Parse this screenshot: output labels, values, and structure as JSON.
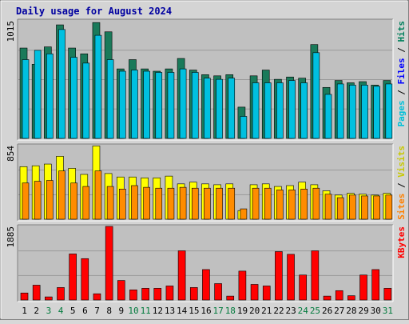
{
  "chart_data": {
    "type": "bar",
    "title": "Daily usage for August 2024",
    "categories": [
      "1",
      "2",
      "3",
      "4",
      "5",
      "6",
      "7",
      "8",
      "9",
      "10",
      "11",
      "12",
      "13",
      "14",
      "15",
      "16",
      "17",
      "18",
      "19",
      "20",
      "21",
      "22",
      "23",
      "24",
      "25",
      "26",
      "27",
      "28",
      "29",
      "30",
      "31"
    ],
    "weekend_days": [
      "3",
      "4",
      "10",
      "11",
      "17",
      "18",
      "24",
      "25",
      "31"
    ],
    "panels": [
      {
        "id": "hits",
        "max_label": "1015",
        "ymax": 1015,
        "legend": [
          "Hits",
          "Files",
          "Pages"
        ],
        "legend_colors": [
          "#00805c",
          "#0000ff",
          "#00c0d8"
        ],
        "series": [
          {
            "name": "Hits",
            "color": "#1a7a5a",
            "values": [
              780,
              640,
              790,
              980,
              780,
              730,
              1000,
              920,
              600,
              680,
              600,
              580,
              600,
              690,
              590,
              550,
              540,
              550,
              270,
              540,
              590,
              510,
              530,
              520,
              810,
              440,
              500,
              480,
              490,
              460,
              500
            ]
          },
          {
            "name": "Files",
            "color": "#0000ff",
            "values": [
              30,
              40,
              20,
              30,
              80,
              10,
              120,
              50,
              20,
              30,
              30,
              40,
              10,
              120,
              60,
              40,
              20,
              10,
              130,
              40,
              20,
              20,
              20,
              20,
              90,
              10,
              10,
              10,
              30,
              30,
              40
            ]
          },
          {
            "name": "Pages",
            "color": "#00c0e0",
            "values": [
              680,
              760,
              730,
              940,
              700,
              650,
              890,
              680,
              580,
              590,
              580,
              570,
              570,
              600,
              570,
              520,
              510,
              520,
              190,
              480,
              480,
              480,
              500,
              480,
              740,
              380,
              470,
              460,
              460,
              450,
              470
            ]
          }
        ]
      },
      {
        "id": "visits",
        "max_label": "854",
        "ymax": 854,
        "legend": [
          "Visits",
          "Sites"
        ],
        "legend_colors": [
          "#c8c800",
          "#ff8000"
        ],
        "series": [
          {
            "name": "Visits",
            "color": "#ffff00",
            "values": [
              610,
              620,
              640,
              730,
              590,
              520,
              850,
              530,
              490,
              490,
              480,
              480,
              500,
              410,
              430,
              410,
              400,
              410,
              100,
              400,
              410,
              380,
              390,
              430,
              400,
              330,
              280,
              300,
              290,
              280,
              300
            ]
          },
          {
            "name": "Sites",
            "color": "#ff8c00",
            "values": [
              420,
              440,
              450,
              560,
              420,
              380,
              560,
              380,
              350,
              390,
              370,
              360,
              360,
              370,
              360,
              360,
              360,
              360,
              120,
              360,
              360,
              340,
              340,
              350,
              360,
              290,
              250,
              280,
              270,
              270,
              280
            ]
          }
        ]
      },
      {
        "id": "kbytes",
        "max_label": "1885",
        "ymax": 1885,
        "legend": [
          "KBytes"
        ],
        "legend_colors": [
          "#ff0000"
        ],
        "series": [
          {
            "name": "KBytes",
            "color": "#ff0000",
            "values": [
              180,
              380,
              80,
              320,
              1180,
              1060,
              160,
              1885,
              500,
              260,
              300,
              300,
              360,
              1260,
              320,
              780,
              420,
              100,
              740,
              400,
              360,
              1240,
              1170,
              640,
              1260,
              100,
              240,
              110,
              640,
              780,
              300
            ]
          }
        ]
      }
    ]
  }
}
